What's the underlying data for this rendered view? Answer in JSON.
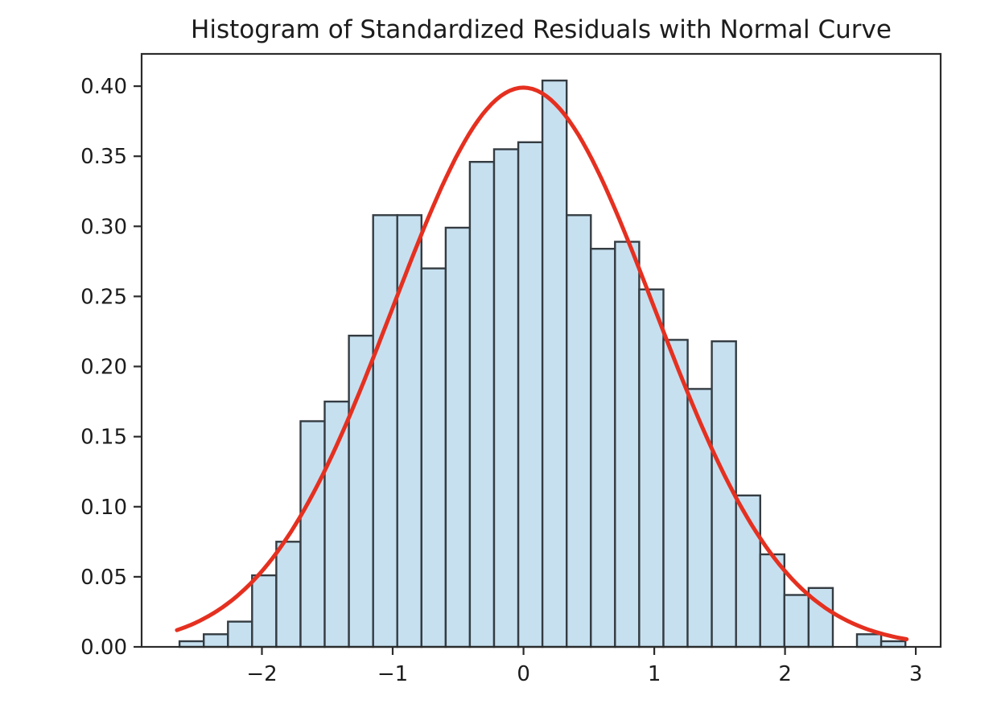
{
  "figure": {
    "background_color": "#ffffff",
    "text_color": "#1c1c1c",
    "axis_color": "#2b2b2b"
  },
  "chart_data": {
    "type": "bar",
    "subtype": "histogram_with_density_curve",
    "title": "Histogram of Standardized Residuals with Normal Curve",
    "xlabel": "",
    "ylabel": "",
    "grid": false,
    "legend": null,
    "xlim": [
      -2.92,
      3.19
    ],
    "ylim": [
      0,
      0.423
    ],
    "x_ticks": [
      -2,
      -1,
      0,
      1,
      2,
      3
    ],
    "x_tick_labels": [
      "−2",
      "−1",
      "0",
      "1",
      "2",
      "3"
    ],
    "y_ticks": [
      0.0,
      0.05,
      0.1,
      0.15,
      0.2,
      0.25,
      0.3,
      0.35,
      0.4
    ],
    "y_tick_labels": [
      "0.00",
      "0.05",
      "0.10",
      "0.15",
      "0.20",
      "0.25",
      "0.30",
      "0.35",
      "0.40"
    ],
    "histogram": {
      "bin_start": -2.63,
      "bin_width": 0.185,
      "bin_count": 30,
      "densities": [
        0.004,
        0.009,
        0.018,
        0.051,
        0.075,
        0.161,
        0.175,
        0.222,
        0.308,
        0.308,
        0.27,
        0.299,
        0.346,
        0.355,
        0.36,
        0.404,
        0.308,
        0.284,
        0.289,
        0.255,
        0.219,
        0.184,
        0.218,
        0.108,
        0.066,
        0.037,
        0.042,
        0.0,
        0.009,
        0.004
      ],
      "fill_color": "#c6e0f0",
      "edge_color": "#343c42"
    },
    "normal_curve": {
      "distribution": "standard_normal_pdf",
      "mean": 0,
      "std": 1,
      "peak": 0.3989,
      "x_range": [
        -2.65,
        2.93
      ],
      "color": "#e53020"
    }
  }
}
